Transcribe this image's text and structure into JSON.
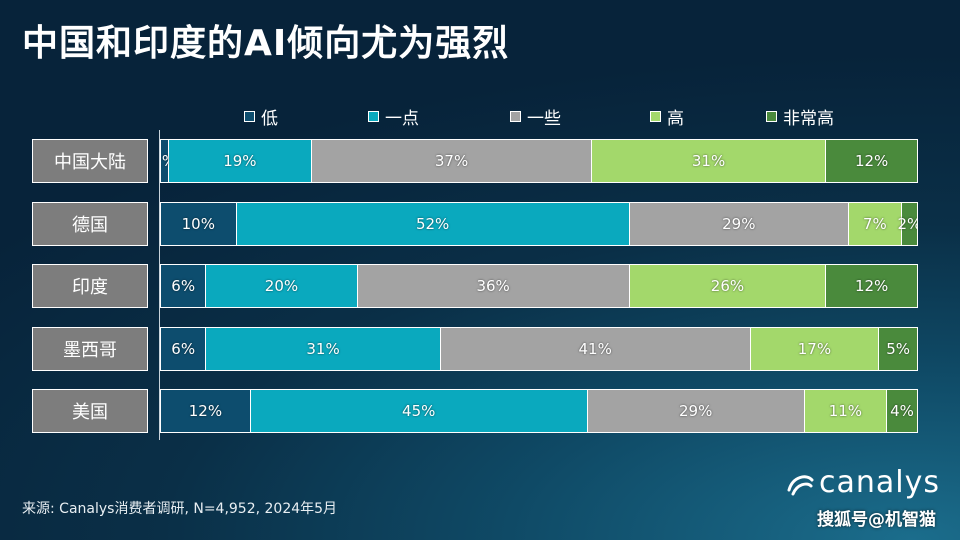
{
  "title": "中国和印度的AI倾向尤为强烈",
  "footer": "来源: Canalys消费者调研, N=4,952, 2024年5月",
  "logo_text": "canalys",
  "watermark": "搜狐号@机智猫",
  "chart_data": {
    "type": "bar",
    "orientation": "horizontal",
    "stacked": true,
    "percent": true,
    "categories": [
      "中国大陆",
      "德国",
      "印度",
      "墨西哥",
      "美国"
    ],
    "series": [
      {
        "name": "低",
        "color": "#0d4d6e",
        "values": [
          1,
          10,
          6,
          6,
          12
        ]
      },
      {
        "name": "一点",
        "color": "#0aa9be",
        "values": [
          19,
          52,
          20,
          31,
          45
        ]
      },
      {
        "name": "一些",
        "color": "#a3a3a3",
        "values": [
          37,
          29,
          36,
          41,
          29
        ]
      },
      {
        "name": "高",
        "color": "#a3d86b",
        "values": [
          31,
          7,
          26,
          17,
          11
        ]
      },
      {
        "name": "非常高",
        "color": "#4a8a3c",
        "values": [
          12,
          2,
          12,
          5,
          4
        ]
      }
    ],
    "legend_position": "top",
    "grid": false
  }
}
